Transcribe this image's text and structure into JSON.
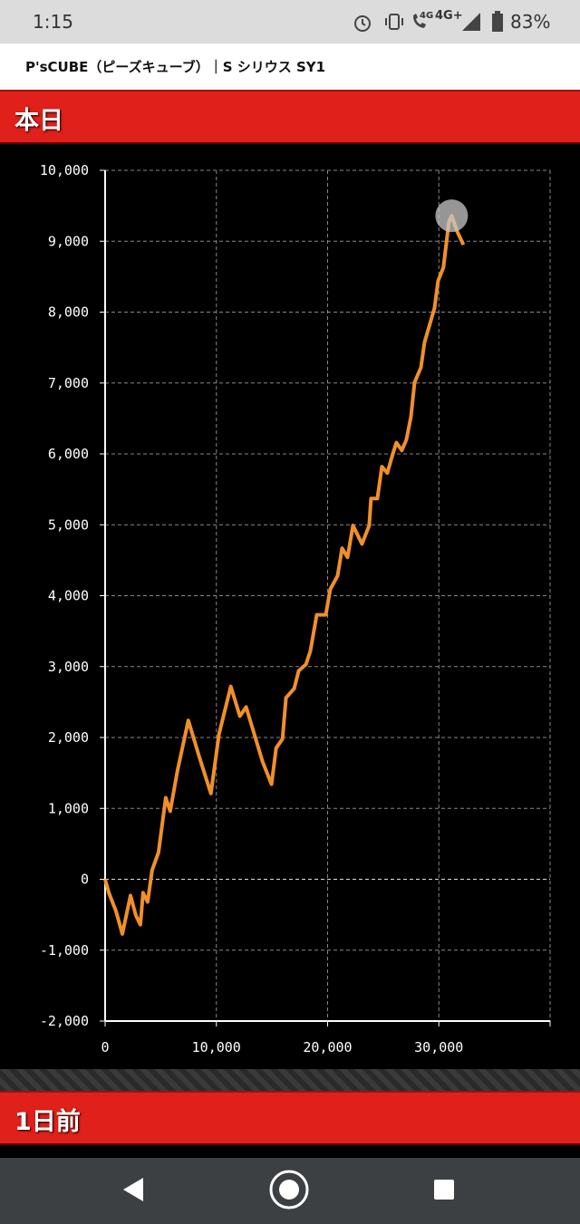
{
  "status_bar": {
    "time": "1:15",
    "network": "4G",
    "network2": "4G+",
    "battery": "83%"
  },
  "header": {
    "title": "P'sCUBE（ピーズキューブ）｜S シリウス SY1"
  },
  "sections": [
    "本日",
    "1日前"
  ],
  "chart_data": {
    "type": "line",
    "color": "#f0902a",
    "grid": true,
    "x": [
      0,
      330,
      980,
      1550,
      2280,
      2760,
      3170,
      3410,
      3820,
      4230,
      4800,
      5450,
      5850,
      6500,
      7480,
      8460,
      9510,
      10240,
      11300,
      12110,
      12680,
      14150,
      14960,
      15370,
      15940,
      16260,
      16990,
      17400,
      18050,
      18450,
      19020,
      19840,
      20240,
      20900,
      21300,
      21790,
      22280,
      23090,
      23740,
      23900,
      24470,
      24880,
      25370,
      25770,
      26180,
      26670,
      27080,
      27490,
      27820,
      28390,
      28710,
      29610,
      29930,
      30410,
      30900,
      31150,
      31640,
      32210
    ],
    "values": [
      0,
      -190,
      -450,
      -770,
      -230,
      -510,
      -640,
      -190,
      -320,
      130,
      380,
      1150,
      960,
      1530,
      2240,
      1730,
      1210,
      2050,
      2720,
      2300,
      2430,
      1660,
      1340,
      1850,
      1980,
      2560,
      2690,
      2940,
      3030,
      3220,
      3730,
      3730,
      4090,
      4280,
      4670,
      4540,
      4990,
      4730,
      4990,
      5370,
      5370,
      5820,
      5730,
      5950,
      6160,
      6050,
      6200,
      6520,
      7010,
      7220,
      7570,
      8060,
      8440,
      8630,
      9270,
      9360,
      9140,
      8950
    ],
    "xlim": [
      0,
      40000
    ],
    "ylim": [
      -2000,
      10000
    ],
    "xticks": [
      0,
      {
        "value": 10000,
        "label": "10,000"
      },
      {
        "value": 20000,
        "label": "20,000"
      },
      {
        "value": 30000,
        "label": "30,000"
      }
    ],
    "yticks": [
      {
        "value": -2000,
        "label": "-2,000"
      },
      {
        "value": -1000,
        "label": "-1,000"
      },
      0,
      {
        "value": 1000,
        "label": "1,000"
      },
      {
        "value": 2000,
        "label": "2,000"
      },
      {
        "value": 3000,
        "label": "3,000"
      },
      {
        "value": 4000,
        "label": "4,000"
      },
      {
        "value": 5000,
        "label": "5,000"
      },
      {
        "value": 6000,
        "label": "6,000"
      },
      {
        "value": 7000,
        "label": "7,000"
      },
      {
        "value": 8000,
        "label": "8,000"
      },
      {
        "value": 9000,
        "label": "9,000"
      },
      {
        "value": 10000,
        "label": "10,000"
      }
    ]
  }
}
